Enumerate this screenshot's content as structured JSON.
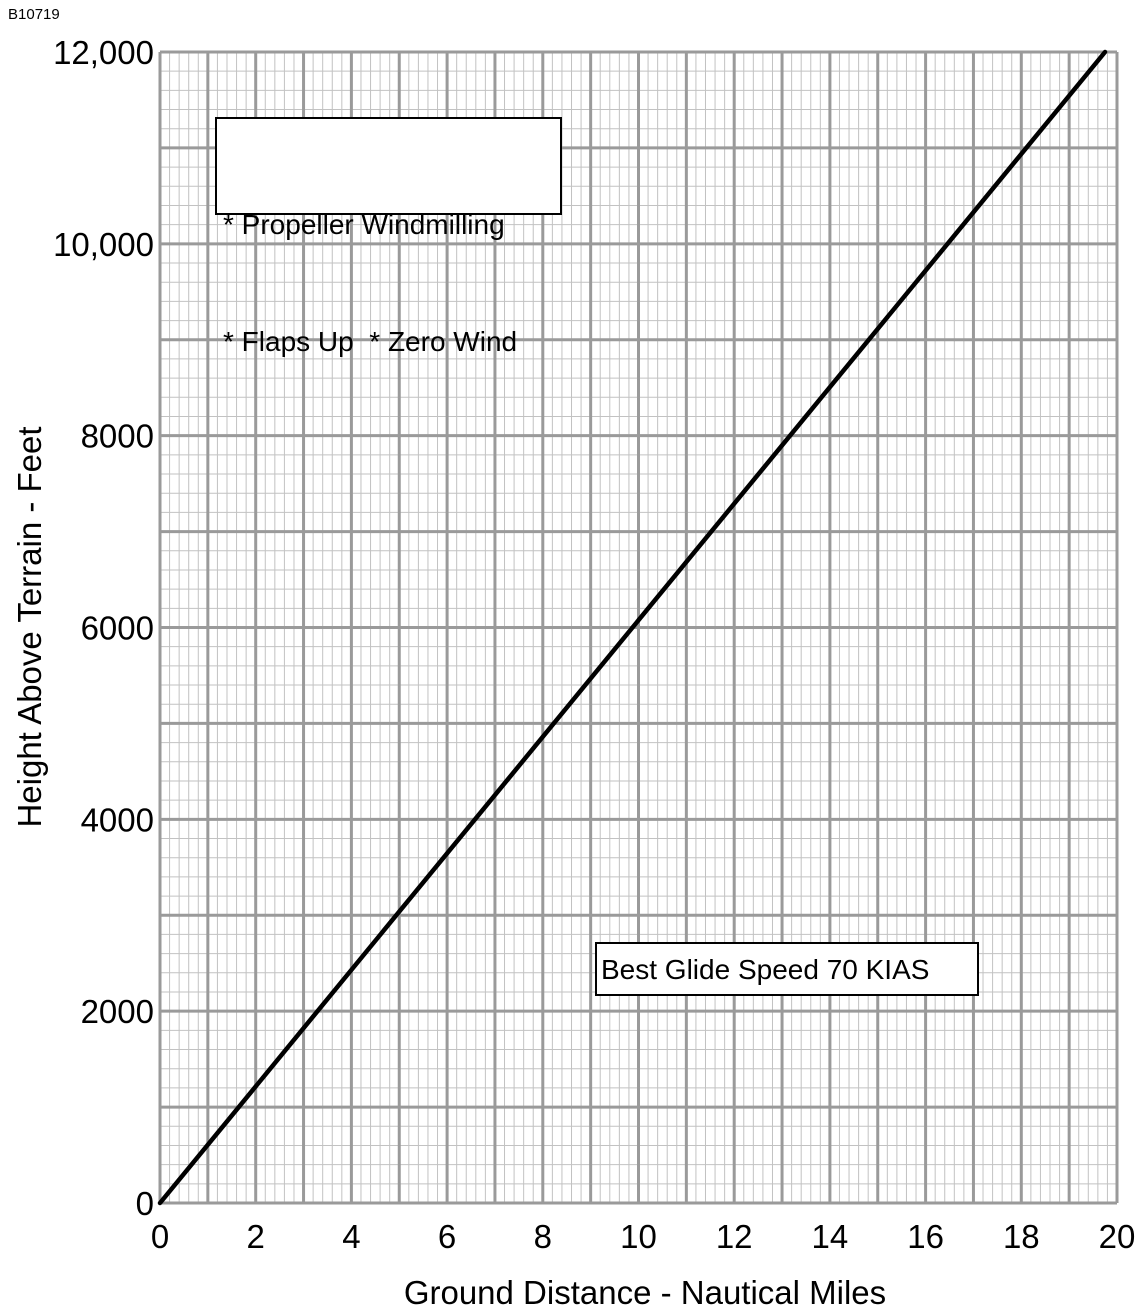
{
  "figure_id": "B10719",
  "notes": {
    "conditions": [
      "* Propeller Windmilling",
      "* Flaps Up  * Zero Wind"
    ],
    "speed": "Best Glide Speed 70 KIAS"
  },
  "colors": {
    "grid_major": "#9a9a9a",
    "grid_minor": "#c2c2c2",
    "line": "#000000",
    "text": "#000000"
  },
  "chart_data": {
    "type": "line",
    "title": "",
    "xlabel": "Ground Distance - Nautical Miles",
    "ylabel": "Height Above Terrain - Feet",
    "xlim": [
      0,
      20
    ],
    "ylim": [
      0,
      12000
    ],
    "x_ticks": [
      0,
      2,
      4,
      6,
      8,
      10,
      12,
      14,
      16,
      18,
      20
    ],
    "x_tick_labels": [
      "0",
      "2",
      "4",
      "6",
      "8",
      "10",
      "12",
      "14",
      "16",
      "18",
      "20"
    ],
    "y_ticks": [
      0,
      2000,
      4000,
      6000,
      8000,
      10000,
      12000
    ],
    "y_tick_labels": [
      "0",
      "2000",
      "4000",
      "6000",
      "8000",
      "10,000",
      "12,000"
    ],
    "grid": true,
    "series": [
      {
        "x": [
          0,
          19.75
        ],
        "y": [
          0,
          12000
        ]
      }
    ]
  }
}
